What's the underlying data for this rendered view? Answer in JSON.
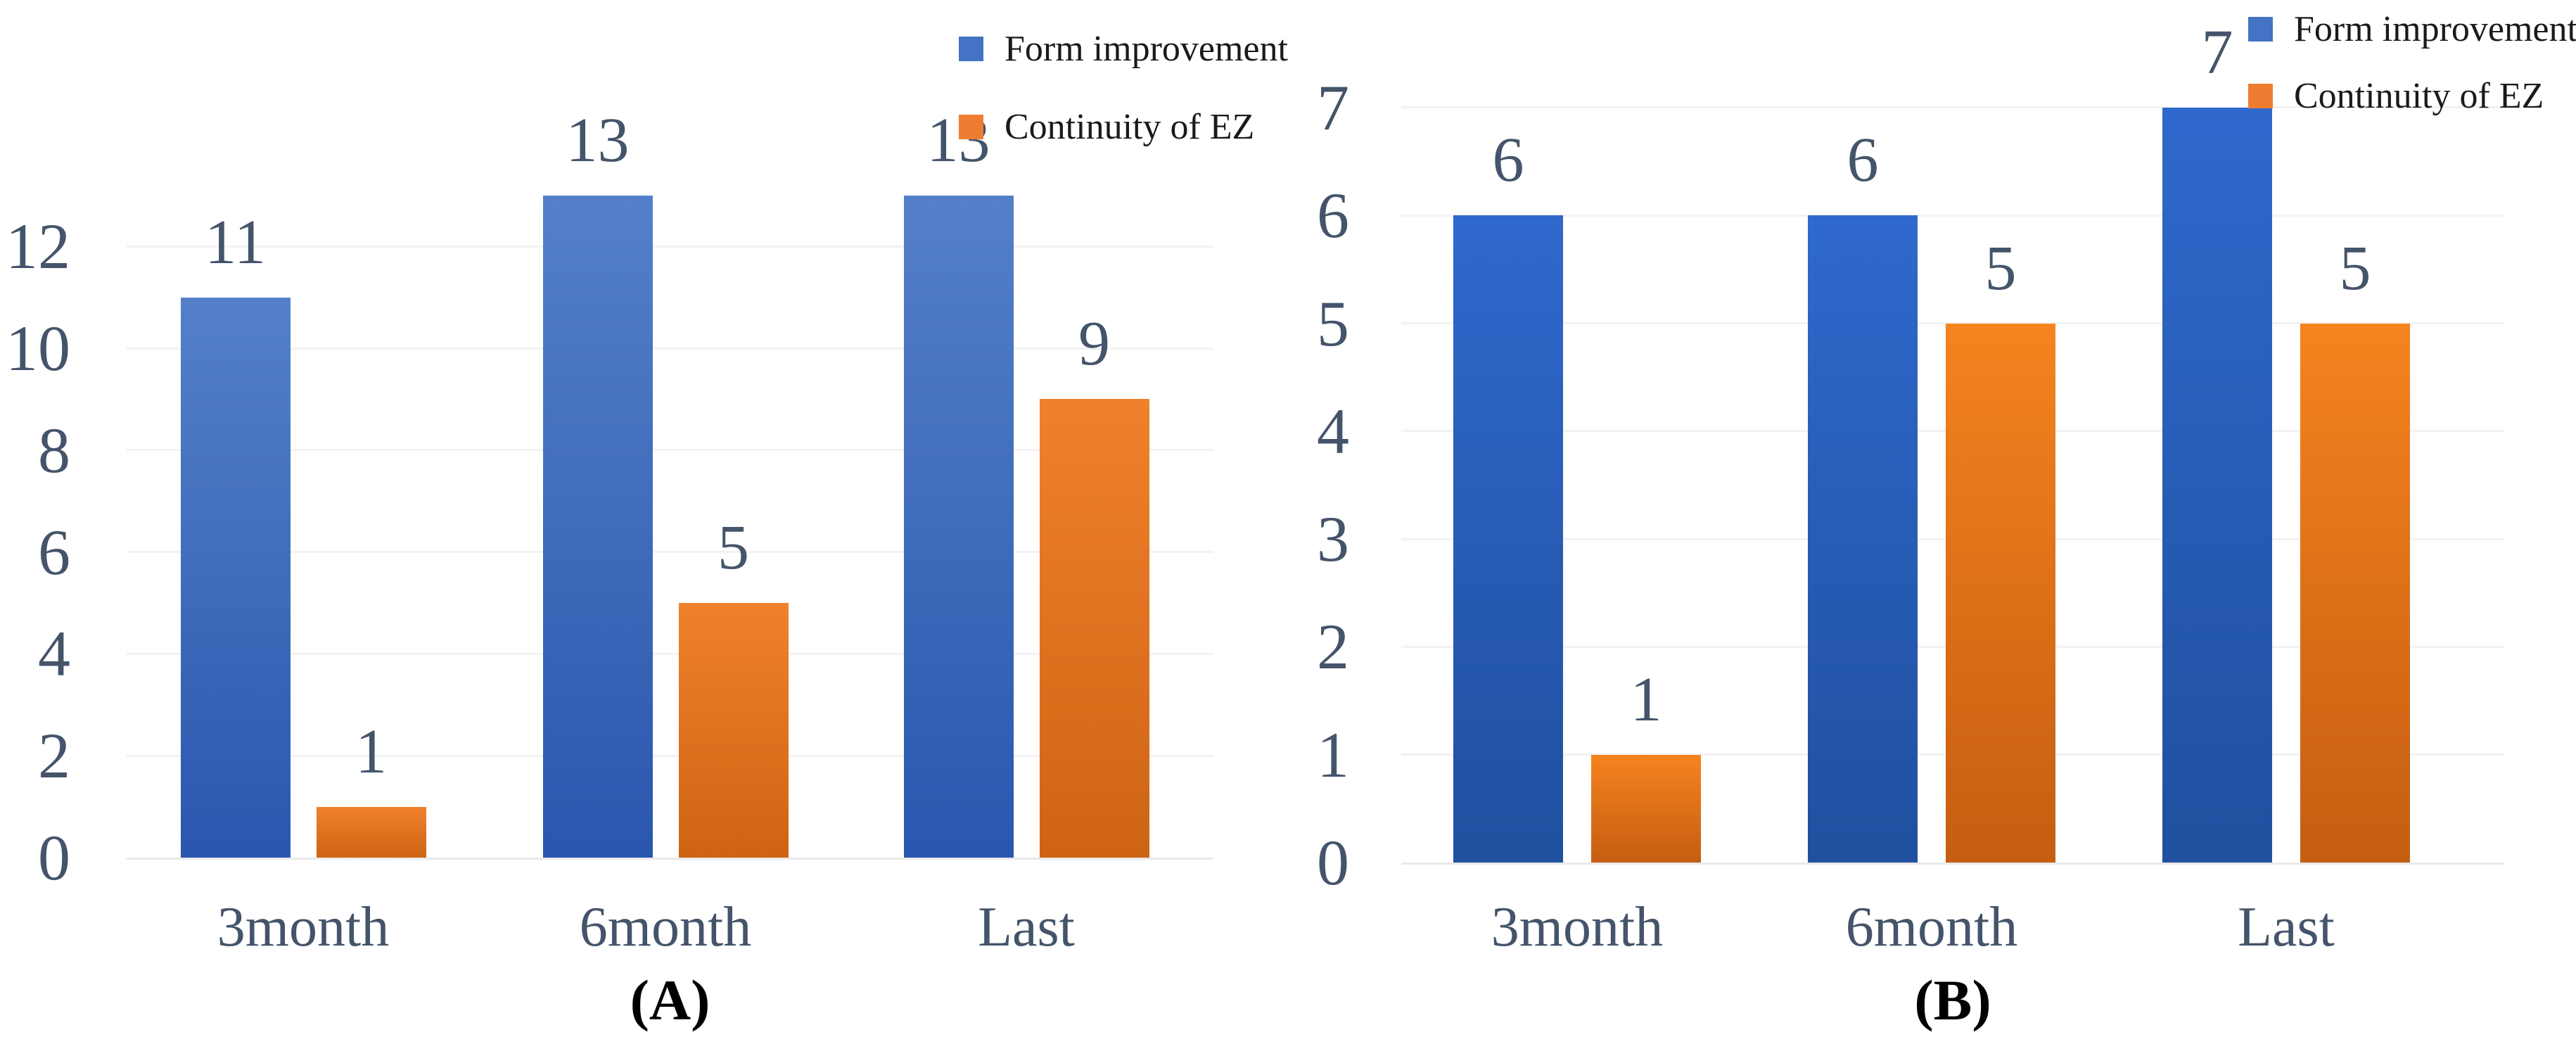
{
  "figure": {
    "background": "#FFFFFF",
    "axis_text_color": "#44546A",
    "legend": {
      "items": [
        {
          "label": "Form improvement",
          "color": "#4472C4"
        },
        {
          "label": "Continuity of EZ",
          "color": "#ED7D31"
        }
      ],
      "position": "top-right"
    }
  },
  "chart_data": [
    {
      "id": "A",
      "type": "bar",
      "caption": "(A)",
      "title": "",
      "xlabel": "",
      "ylabel": "",
      "categories": [
        "3month",
        "6month",
        "Last"
      ],
      "series": [
        {
          "name": "Form improvement",
          "values": [
            11,
            13,
            13
          ]
        },
        {
          "name": "Continuity of EZ",
          "values": [
            1,
            5,
            9
          ]
        }
      ],
      "y_ticks": [
        0,
        2,
        4,
        6,
        8,
        10,
        12
      ],
      "ylim": [
        0,
        13
      ],
      "grid": true,
      "legend_position": "top-right",
      "bar_gradients": [
        [
          "#5480C9",
          "#2A57AE"
        ],
        [
          "#F0812C",
          "#CE6413"
        ]
      ]
    },
    {
      "id": "B",
      "type": "bar",
      "caption": "(B)",
      "title": "",
      "xlabel": "",
      "ylabel": "",
      "categories": [
        "3month",
        "6month",
        "Last"
      ],
      "series": [
        {
          "name": "Form improvement",
          "values": [
            6,
            6,
            7
          ]
        },
        {
          "name": "Continuity of EZ",
          "values": [
            1,
            5,
            5
          ]
        }
      ],
      "y_ticks": [
        0,
        1,
        2,
        3,
        4,
        5,
        6,
        7
      ],
      "ylim": [
        0,
        7
      ],
      "grid": true,
      "legend_position": "top-right",
      "bar_gradients": [
        [
          "#2F69CD",
          "#20509F"
        ],
        [
          "#F5831F",
          "#C55E11"
        ]
      ]
    }
  ]
}
